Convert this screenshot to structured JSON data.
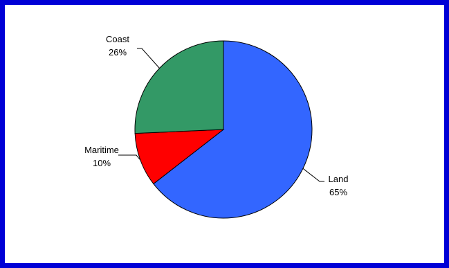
{
  "chart_data": {
    "type": "pie",
    "title": "",
    "legend": "none",
    "slices": [
      {
        "label": "Land",
        "percent_label": "65%",
        "value": 64.5,
        "color": "#3366ff"
      },
      {
        "label": "Maritime",
        "percent_label": "10%",
        "value": 9.8,
        "color": "#ff0000"
      },
      {
        "label": "Coast",
        "percent_label": "26%",
        "value": 25.7,
        "color": "#339966"
      }
    ]
  },
  "frame": {
    "border_color": "#0000d6"
  }
}
